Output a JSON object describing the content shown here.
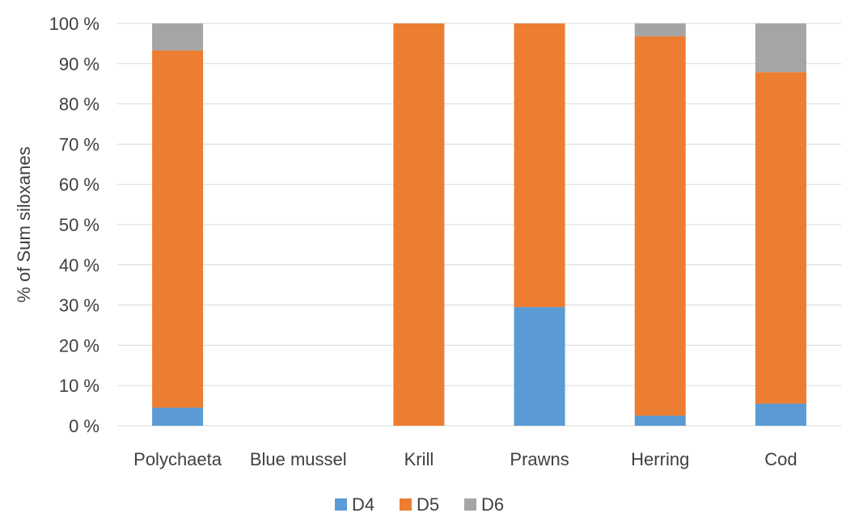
{
  "chart_data": {
    "type": "bar",
    "stacked": true,
    "categories": [
      "Polychaeta",
      "Blue mussel",
      "Krill",
      "Prawns",
      "Herring",
      "Cod"
    ],
    "series": [
      {
        "name": "D4",
        "color": "#5b9bd5",
        "values": [
          4.5,
          0,
          0,
          29.5,
          2.5,
          5.5
        ]
      },
      {
        "name": "D5",
        "color": "#ed7d31",
        "values": [
          88.8,
          0,
          100,
          70.5,
          94.3,
          82.4
        ]
      },
      {
        "name": "D6",
        "color": "#a5a5a5",
        "values": [
          6.7,
          0,
          0,
          0,
          3.2,
          12.1
        ]
      }
    ],
    "ylabel": "% of Sum siloxanes",
    "xlabel": "",
    "ylim": [
      0,
      100
    ],
    "yticks": [
      "0 %",
      "10 %",
      "20 %",
      "30 %",
      "40 %",
      "50 %",
      "60 %",
      "70 %",
      "80 %",
      "90 %",
      "100 %"
    ],
    "grid": true,
    "legend_position": "bottom"
  }
}
